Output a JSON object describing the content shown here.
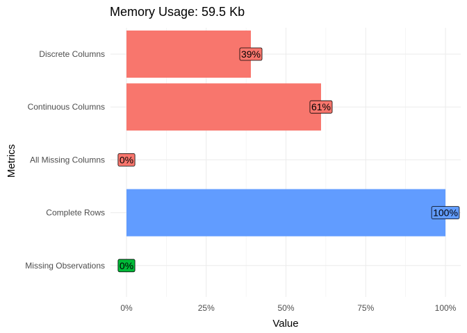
{
  "chart_data": {
    "type": "bar",
    "orientation": "horizontal",
    "title": "Memory Usage: 59.5 Kb",
    "xlabel": "Value",
    "ylabel": "Metrics",
    "xlim": [
      0,
      1
    ],
    "x_ticks": [
      0,
      0.25,
      0.5,
      0.75,
      1
    ],
    "x_tick_labels": [
      "0%",
      "25%",
      "50%",
      "75%",
      "100%"
    ],
    "grid": true,
    "legend": "none",
    "categories": [
      "Discrete Columns",
      "Continuous Columns",
      "All Missing Columns",
      "Complete Rows",
      "Missing Observations"
    ],
    "values": [
      0.39,
      0.61,
      0.0,
      1.0,
      0.0
    ],
    "value_labels": [
      "39%",
      "61%",
      "0%",
      "100%",
      "0%"
    ],
    "bar_colors": [
      "#F8766D",
      "#F8766D",
      "#F8766D",
      "#619CFF",
      "#00BA38"
    ]
  }
}
